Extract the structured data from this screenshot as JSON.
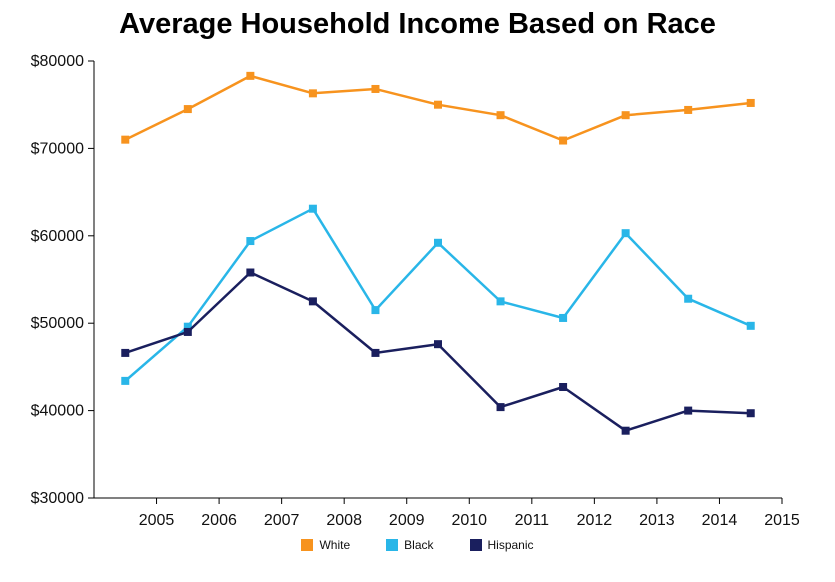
{
  "chart_data": {
    "type": "line",
    "title": "Average Household Income Based on Race",
    "xlabel": "",
    "ylabel": "",
    "x_ticks": [
      "2005",
      "2006",
      "2007",
      "2008",
      "2009",
      "2010",
      "2011",
      "2012",
      "2013",
      "2014",
      "2015"
    ],
    "y_ticks": [
      "$30000",
      "$40000",
      "$50000",
      "$60000",
      "$70000",
      "$80000"
    ],
    "xlim": [
      2004,
      2015
    ],
    "ylim": [
      30000,
      80000
    ],
    "x": [
      2004.5,
      2005.5,
      2006.5,
      2007.5,
      2008.5,
      2009.5,
      2010.5,
      2011.5,
      2012.5,
      2013.5,
      2014.5
    ],
    "grid": false,
    "legend_position": "bottom",
    "series": [
      {
        "name": "White",
        "color": "#F7931E",
        "marker": "square",
        "values": [
          71000,
          74500,
          78300,
          76300,
          76800,
          75000,
          73800,
          70900,
          73800,
          74400,
          75200
        ]
      },
      {
        "name": "Black",
        "color": "#29B6E8",
        "marker": "square",
        "values": [
          43400,
          49600,
          59400,
          63100,
          51500,
          59200,
          52500,
          50600,
          60300,
          52800,
          49700
        ]
      },
      {
        "name": "Hispanic",
        "color": "#1A1F5E",
        "marker": "square",
        "values": [
          46600,
          49000,
          55800,
          52500,
          46600,
          47600,
          40400,
          42700,
          37700,
          40000,
          39700
        ]
      }
    ]
  }
}
